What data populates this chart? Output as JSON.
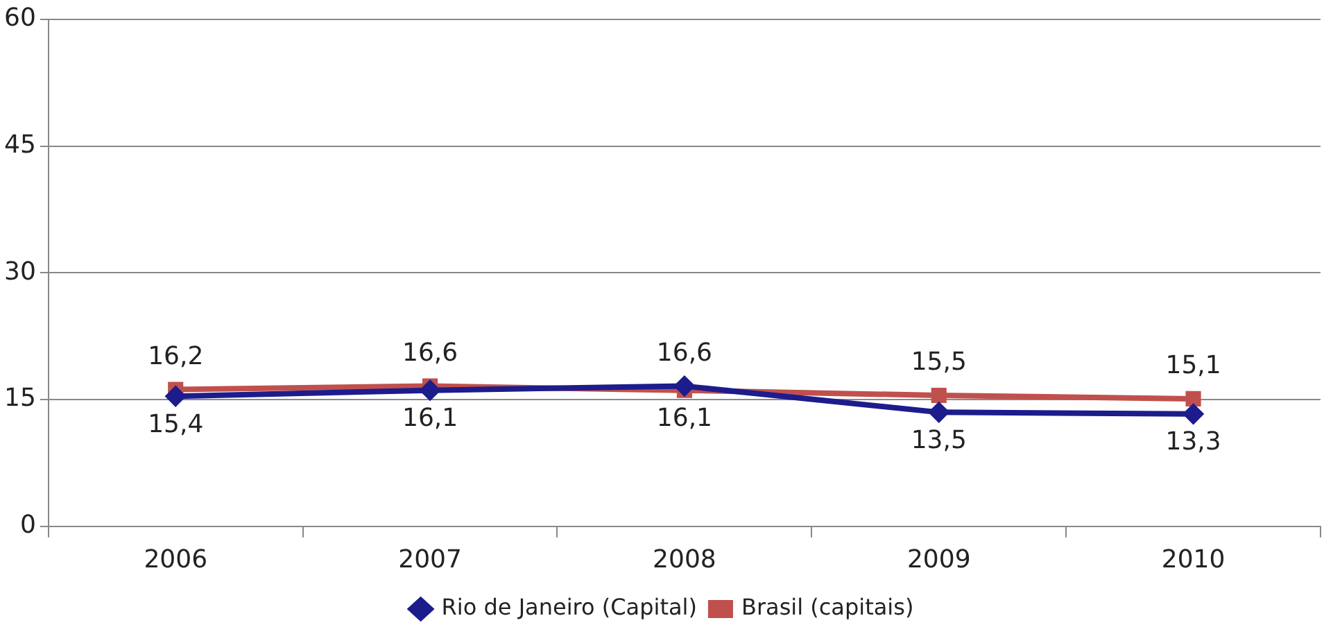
{
  "chart_data": {
    "type": "line",
    "categories": [
      "2006",
      "2007",
      "2008",
      "2009",
      "2010"
    ],
    "series": [
      {
        "name": "Rio de Janeiro (Capital)",
        "color": "#1c1c8c",
        "marker": "diamond",
        "values": [
          15.4,
          16.1,
          16.6,
          13.5,
          13.3
        ],
        "value_labels": [
          "15,4",
          "16,1",
          "16,6",
          "13,5",
          "13,3"
        ]
      },
      {
        "name": "Brasil (capitais)",
        "color": "#c0504d",
        "marker": "square",
        "values": [
          16.2,
          16.6,
          16.1,
          15.5,
          15.1
        ],
        "value_labels": [
          "16,2",
          "16,6",
          "16,1",
          "15,5",
          "15,1"
        ]
      }
    ],
    "ylim": [
      0,
      60
    ],
    "yticks": [
      0,
      15,
      30,
      45,
      60
    ],
    "grid": "y",
    "legend": "bottom",
    "line_style": "solid"
  }
}
